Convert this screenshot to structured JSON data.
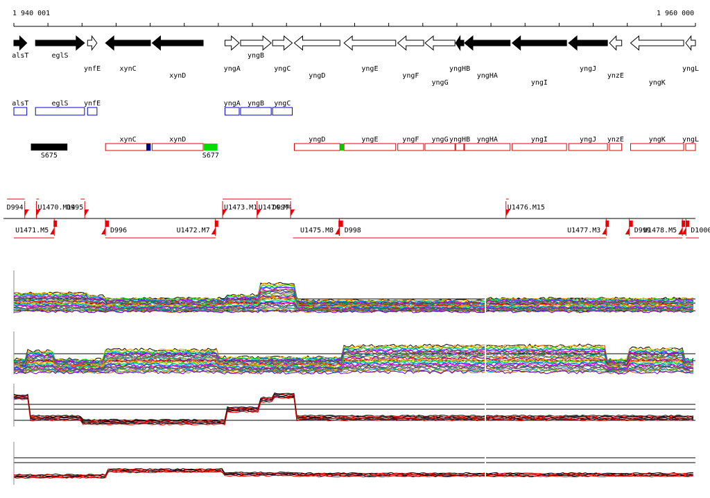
{
  "ruler": {
    "start_label": "1 940 001",
    "end_label": "1 960 000",
    "start": 1940001,
    "end": 1960000
  },
  "genes": [
    {
      "name": "alsT",
      "start": 1940001,
      "end": 1940381,
      "strand": "+",
      "filled": true,
      "label_row": 0
    },
    {
      "name": "eglS",
      "start": 1940636,
      "end": 1942073,
      "strand": "+",
      "filled": true,
      "label_row": 0
    },
    {
      "name": "ynfE",
      "start": 1942163,
      "end": 1942440,
      "strand": "+",
      "filled": false,
      "label_row": 1
    },
    {
      "name": "xynC",
      "start": 1942690,
      "end": 1944009,
      "strand": "-",
      "filled": true,
      "label_row": 1
    },
    {
      "name": "xynD",
      "start": 1944059,
      "end": 1945556,
      "strand": "-",
      "filled": true,
      "label_row": 2
    },
    {
      "name": "yngA",
      "start": 1946195,
      "end": 1946613,
      "strand": "+",
      "filled": false,
      "label_row": 1
    },
    {
      "name": "yngB",
      "start": 1946653,
      "end": 1947552,
      "strand": "+",
      "filled": false,
      "label_row": 0
    },
    {
      "name": "yngC",
      "start": 1947592,
      "end": 1948170,
      "strand": "+",
      "filled": false,
      "label_row": 1
    },
    {
      "name": "yngD",
      "start": 1948230,
      "end": 1949568,
      "strand": "-",
      "filled": false,
      "label_row": 2
    },
    {
      "name": "yngE",
      "start": 1949688,
      "end": 1951206,
      "strand": "-",
      "filled": false,
      "label_row": 1
    },
    {
      "name": "yngF",
      "start": 1951266,
      "end": 1952025,
      "strand": "-",
      "filled": false,
      "label_row": 2
    },
    {
      "name": "yngG",
      "start": 1952065,
      "end": 1952944,
      "strand": "-",
      "filled": false,
      "label_row": 3
    },
    {
      "name": "yngHB",
      "start": 1952964,
      "end": 1953204,
      "strand": "-",
      "filled": true,
      "label_row": 1
    },
    {
      "name": "yngHA",
      "start": 1953224,
      "end": 1954562,
      "strand": "-",
      "filled": true,
      "label_row": 2
    },
    {
      "name": "yngI",
      "start": 1954622,
      "end": 1956219,
      "strand": "-",
      "filled": true,
      "label_row": 3
    },
    {
      "name": "yngJ",
      "start": 1956279,
      "end": 1957418,
      "strand": "-",
      "filled": true,
      "label_row": 1
    },
    {
      "name": "ynzE",
      "start": 1957478,
      "end": 1957837,
      "strand": "-",
      "filled": false,
      "label_row": 2
    },
    {
      "name": "yngK",
      "start": 1958097,
      "end": 1959655,
      "strand": "-",
      "filled": false,
      "label_row": 3
    },
    {
      "name": "yngL",
      "start": 1959715,
      "end": 1960000,
      "strand": "-",
      "filled": false,
      "label_row": 1
    }
  ],
  "operons_blue": [
    {
      "label": "alsT",
      "start": 1940001,
      "end": 1940381
    },
    {
      "label": "eglS",
      "start": 1940636,
      "end": 1942073
    },
    {
      "label": "ynfE",
      "start": 1942163,
      "end": 1942440
    },
    {
      "label": "yngA",
      "start": 1946195,
      "end": 1946613
    },
    {
      "label": "yngB",
      "start": 1946653,
      "end": 1947552
    },
    {
      "label": "yngC",
      "start": 1947592,
      "end": 1948170
    }
  ],
  "operons_red": [
    {
      "label": "xynC",
      "start": 1942690,
      "end": 1944009
    },
    {
      "label": "xynD",
      "start": 1944059,
      "end": 1945556
    },
    {
      "label": "yngD",
      "start": 1948230,
      "end": 1949568
    },
    {
      "label": "yngE",
      "start": 1949688,
      "end": 1951206
    },
    {
      "label": "yngF",
      "start": 1951266,
      "end": 1952025
    },
    {
      "label": "yngG",
      "start": 1952065,
      "end": 1952944
    },
    {
      "label": "yngHB",
      "start": 1952964,
      "end": 1953204
    },
    {
      "label": "yngHA",
      "start": 1953224,
      "end": 1954562
    },
    {
      "label": "yngI",
      "start": 1954622,
      "end": 1956219
    },
    {
      "label": "yngJ",
      "start": 1956279,
      "end": 1957418
    },
    {
      "label": "ynzE",
      "start": 1957478,
      "end": 1957837
    },
    {
      "label": "yngK",
      "start": 1958097,
      "end": 1959655
    },
    {
      "label": "yngL",
      "start": 1959715,
      "end": 1960000
    }
  ],
  "markers": {
    "sites": [
      {
        "label": "S675",
        "start": 1940501,
        "end": 1941571,
        "color": "#000000"
      },
      {
        "label": "S677",
        "start": 1945576,
        "end": 1945976,
        "color": "#00dd00"
      }
    ],
    "inline_marks": [
      {
        "start": 1943889,
        "end": 1944009,
        "color": "#000080"
      },
      {
        "start": 1949568,
        "end": 1949688,
        "color": "#00cc00"
      }
    ]
  },
  "segments": {
    "top": [
      {
        "label": "U1470.M14",
        "start": 1940661,
        "end": 1940741,
        "flag_side": "start"
      },
      {
        "label": "D995",
        "start": 1941961,
        "end": 1942081,
        "flag_side": "end"
      },
      {
        "label": "U1473.M1",
        "start": 1946126,
        "end": 1947136,
        "flag_side": "start"
      },
      {
        "label": "U1474.M4",
        "start": 1947136,
        "end": 1948147,
        "flag_side": "start"
      },
      {
        "label": "D997",
        "start": 1947961,
        "end": 1948121,
        "flag_side": "end"
      },
      {
        "label": "U1476.M15",
        "start": 1954441,
        "end": 1954521,
        "flag_side": "start"
      },
      {
        "label": "D994",
        "start": 1939801,
        "end": 1940321,
        "flag_side": "end"
      }
    ],
    "bottom": [
      {
        "label": "U1471.M5",
        "start": 1940001,
        "end": 1941186,
        "flag_side": "end"
      },
      {
        "label": "D996",
        "start": 1942686,
        "end": 1945916,
        "flag_side": "start"
      },
      {
        "label": "U1472.M7",
        "start": 1942686,
        "end": 1945916,
        "flag_side": "end"
      },
      {
        "label": "U1475.M8",
        "start": 1948191,
        "end": 1949547,
        "flag_side": "end"
      },
      {
        "label": "D998",
        "start": 1949557,
        "end": 1949777,
        "flag_side": "start"
      },
      {
        "label": "U1477.M3",
        "start": 1949557,
        "end": 1957382,
        "flag_side": "end"
      },
      {
        "label": "D999",
        "start": 1958061,
        "end": 1958221,
        "flag_side": "start"
      },
      {
        "label": "U1478.M5",
        "start": 1958061,
        "end": 1959616,
        "flag_side": "end"
      },
      {
        "label": "D1000",
        "start": 1959721,
        "end": 1960201,
        "flag_side": "start"
      }
    ]
  },
  "tracks": [
    {
      "name": "expression-track-1",
      "color_mode": "rainbow",
      "n_series": 32
    },
    {
      "name": "expression-track-2",
      "color_mode": "rainbow",
      "n_series": 32
    },
    {
      "name": "expression-track-3",
      "color_mode": "black-red",
      "n_series": 8
    },
    {
      "name": "expression-track-4",
      "color_mode": "black-red",
      "n_series": 6
    }
  ]
}
